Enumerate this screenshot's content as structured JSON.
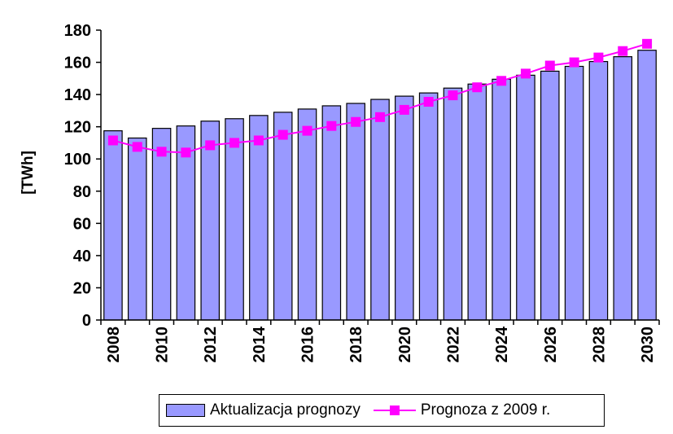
{
  "chart_data": {
    "type": "bar",
    "categories": [
      "2008",
      "2009",
      "2010",
      "2011",
      "2012",
      "2013",
      "2014",
      "2015",
      "2016",
      "2017",
      "2018",
      "2019",
      "2020",
      "2021",
      "2022",
      "2023",
      "2024",
      "2025",
      "2026",
      "2027",
      "2028",
      "2029",
      "2030"
    ],
    "tick_labels": [
      "2008",
      "2010",
      "2012",
      "2014",
      "2016",
      "2018",
      "2020",
      "2022",
      "2024",
      "2026",
      "2028",
      "2030"
    ],
    "ylabel": "[TWh]",
    "ylim": [
      0,
      180
    ],
    "yticks": [
      0,
      20,
      40,
      60,
      80,
      100,
      120,
      140,
      160,
      180
    ],
    "grid": false,
    "legend_position": "bottom",
    "series": [
      {
        "name": "Aktualizacja prognozy",
        "kind": "bar",
        "color": "#9999ff",
        "values": [
          117.5,
          113.0,
          119.0,
          120.5,
          123.5,
          125.0,
          127.0,
          129.0,
          131.0,
          133.0,
          134.5,
          137.0,
          139.0,
          141.0,
          144.0,
          146.5,
          149.5,
          152.0,
          154.5,
          157.5,
          160.5,
          163.5,
          167.5
        ]
      },
      {
        "name": "Prognoza z 2009 r.",
        "kind": "line",
        "color": "#ff00ff",
        "values": [
          111.5,
          107.5,
          104.5,
          104.0,
          108.5,
          110.0,
          111.5,
          115.0,
          117.5,
          120.5,
          123.0,
          126.0,
          130.5,
          135.5,
          139.5,
          144.5,
          148.5,
          153.0,
          158.0,
          160.0,
          163.0,
          167.0,
          171.5
        ]
      }
    ]
  }
}
